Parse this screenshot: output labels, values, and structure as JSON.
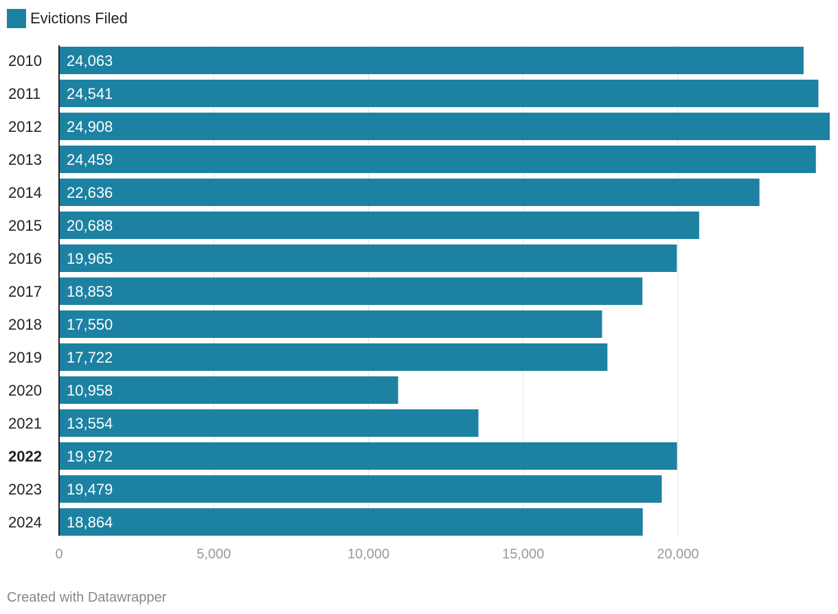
{
  "chart_data": {
    "type": "bar",
    "orientation": "horizontal",
    "legend": [
      {
        "name": "Evictions Filed",
        "color": "#1d81a2"
      }
    ],
    "categories": [
      "2010",
      "2011",
      "2012",
      "2013",
      "2014",
      "2015",
      "2016",
      "2017",
      "2018",
      "2019",
      "2020",
      "2021",
      "2022",
      "2023",
      "2024"
    ],
    "values": [
      24063,
      24541,
      24908,
      24459,
      22636,
      20688,
      19965,
      18853,
      17550,
      17722,
      10958,
      13554,
      19972,
      19479,
      18864
    ],
    "value_labels": [
      "24,063",
      "24,541",
      "24,908",
      "24,459",
      "22,636",
      "20,688",
      "19,965",
      "18,853",
      "17,550",
      "17,722",
      "10,958",
      "13,554",
      "19,972",
      "19,479",
      "18,864"
    ],
    "highlighted_category": "2022",
    "xlim": [
      0,
      24908
    ],
    "x_ticks": [
      0,
      5000,
      10000,
      15000,
      20000
    ],
    "x_tick_labels": [
      "0",
      "5,000",
      "10,000",
      "15,000",
      "20,000"
    ],
    "grid": true,
    "bar_color": "#1d81a2",
    "title": "",
    "xlabel": "",
    "ylabel": ""
  },
  "footer": {
    "credit": "Created with Datawrapper"
  },
  "colors": {
    "bar": "#1d81a2",
    "gridline": "#e3e3e3",
    "axis": "#222222",
    "tick_text": "#9a9a9a",
    "label_text": "#222222",
    "value_text": "#ffffff",
    "footer_text": "#888888"
  }
}
